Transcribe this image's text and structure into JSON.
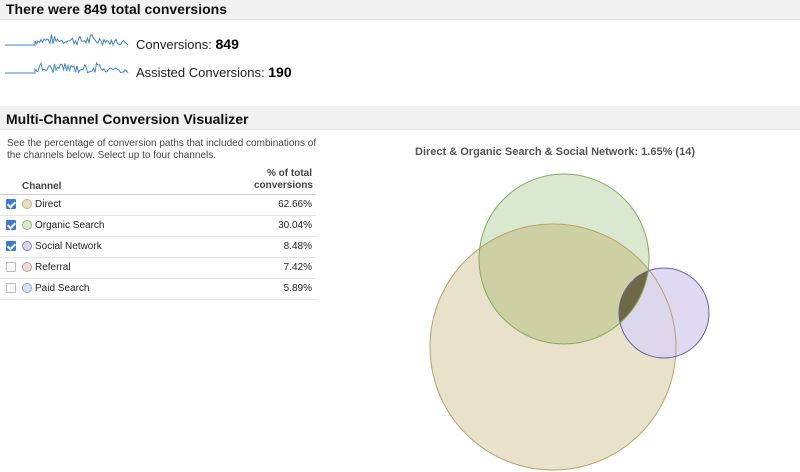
{
  "header": {
    "title": "There were 849 total conversions"
  },
  "metrics": [
    {
      "label": "Conversions:",
      "value": "849"
    },
    {
      "label": "Assisted Conversions:",
      "value": "190"
    }
  ],
  "visualizer": {
    "title": "Multi-Channel Conversion Visualizer",
    "description": "See the percentage of conversion paths that included combinations of the channels below. Select up to four channels.",
    "table": {
      "col_channel": "Channel",
      "col_pct": "% of total conversions",
      "rows": [
        {
          "channel": "Direct",
          "pct": "62.66%",
          "checked": true,
          "color": "#e8dfc8",
          "border": "#c3b27d"
        },
        {
          "channel": "Organic Search",
          "pct": "30.04%",
          "checked": true,
          "color": "#d8e8cd",
          "border": "#95b777"
        },
        {
          "channel": "Social Network",
          "pct": "8.48%",
          "checked": true,
          "color": "#d9d4ee",
          "border": "#8c82c4"
        },
        {
          "channel": "Referral",
          "pct": "7.42%",
          "checked": false,
          "color": "#ead8d8",
          "border": "#c29b9b"
        },
        {
          "channel": "Paid Search",
          "pct": "5.89%",
          "checked": false,
          "color": "#d4e2f5",
          "border": "#88a7d6"
        }
      ]
    },
    "venn_title": "Direct & Organic Search & Social Network: 1.65% (14)"
  },
  "colors": {
    "sparkline": "#3e86c6",
    "direct_fill": "#e6dfc5",
    "direct_stroke": "#b7a36b",
    "organic_fill": "#d7e6cb",
    "organic_stroke": "#88a85f",
    "social_fill": "#dcd6f0",
    "social_stroke": "#6a5d9e",
    "overlap_do": "#ccd0a3",
    "overlap_all": "#5e5637"
  }
}
